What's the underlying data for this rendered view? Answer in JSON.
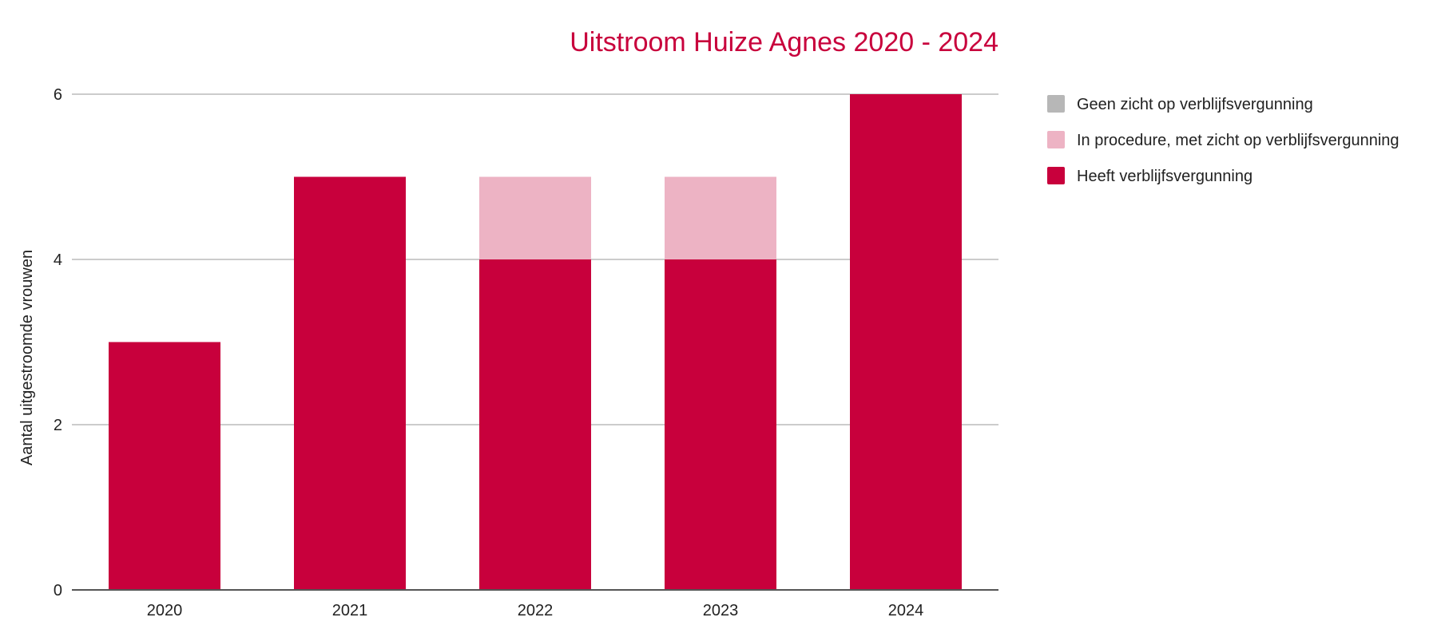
{
  "chart_data": {
    "type": "bar",
    "stacked": true,
    "title": "Uitstroom Huize Agnes 2020 -  2024",
    "xlabel": "",
    "ylabel": "Aantal uitgestroomde vrouwen",
    "categories": [
      "2020",
      "2021",
      "2022",
      "2023",
      "2024"
    ],
    "ylim": [
      0,
      6
    ],
    "yticks": [
      0,
      2,
      4,
      6
    ],
    "grid": true,
    "legend_position": "right",
    "title_color": "#c8003c",
    "series": [
      {
        "name": "Heeft verblijfsvergunning",
        "color": "#c8003c",
        "values": [
          3,
          5,
          4,
          4,
          6
        ]
      },
      {
        "name": "In procedure, met zicht op verblijfsvergunning",
        "color": "#edb3c4",
        "values": [
          0,
          0,
          1,
          1,
          0
        ]
      },
      {
        "name": "Geen zicht op verblijfsvergunning",
        "color": "#b7b7b7",
        "values": [
          0,
          0,
          0,
          0,
          0
        ]
      }
    ],
    "legend_order": [
      "Geen zicht op verblijfsvergunning",
      "In procedure, met zicht op verblijfsvergunning",
      "Heeft verblijfsvergunning"
    ]
  }
}
